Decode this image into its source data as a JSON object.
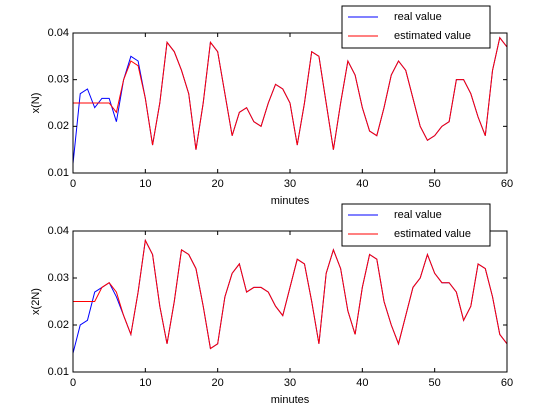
{
  "chart_data": [
    {
      "type": "line",
      "xlabel": "minutes",
      "ylabel": "x(N)",
      "legend": "upper right",
      "xlim": [
        0,
        60
      ],
      "xticks": [
        0,
        10,
        20,
        30,
        40,
        50,
        60
      ],
      "ylim": [
        0.01,
        0.04
      ],
      "yticks": [
        0.01,
        0.02,
        0.03,
        0.04
      ],
      "x": [
        0,
        1,
        2,
        3,
        4,
        5,
        6,
        7,
        8,
        9,
        10,
        11,
        12,
        13,
        14,
        15,
        16,
        17,
        18,
        19,
        20,
        21,
        22,
        23,
        24,
        25,
        26,
        27,
        28,
        29,
        30,
        31,
        32,
        33,
        34,
        35,
        36,
        37,
        38,
        39,
        40,
        41,
        42,
        43,
        44,
        45,
        46,
        47,
        48,
        49,
        50,
        51,
        52,
        53,
        54,
        55,
        56,
        57,
        58,
        59,
        60
      ],
      "series": [
        {
          "name": "real value",
          "color": "#0000ff",
          "values": [
            0.012,
            0.027,
            0.028,
            0.024,
            0.026,
            0.026,
            0.021,
            0.03,
            0.035,
            0.034,
            0.026,
            0.016,
            0.025,
            0.038,
            0.036,
            0.032,
            0.027,
            0.015,
            0.025,
            0.038,
            0.036,
            0.027,
            0.018,
            0.023,
            0.024,
            0.021,
            0.02,
            0.025,
            0.029,
            0.028,
            0.025,
            0.016,
            0.025,
            0.036,
            0.035,
            0.025,
            0.015,
            0.025,
            0.034,
            0.031,
            0.024,
            0.019,
            0.018,
            0.024,
            0.031,
            0.034,
            0.032,
            0.026,
            0.02,
            0.017,
            0.018,
            0.02,
            0.021,
            0.03,
            0.03,
            0.027,
            0.022,
            0.018,
            0.032,
            0.039,
            0.037
          ]
        },
        {
          "name": "estimated value",
          "color": "#ff0000",
          "values": [
            0.025,
            0.025,
            0.025,
            0.025,
            0.025,
            0.025,
            0.023,
            0.03,
            0.034,
            0.033,
            0.026,
            0.016,
            0.025,
            0.038,
            0.036,
            0.032,
            0.027,
            0.015,
            0.025,
            0.038,
            0.036,
            0.027,
            0.018,
            0.023,
            0.024,
            0.021,
            0.02,
            0.025,
            0.029,
            0.028,
            0.025,
            0.016,
            0.025,
            0.036,
            0.035,
            0.025,
            0.015,
            0.025,
            0.034,
            0.031,
            0.024,
            0.019,
            0.018,
            0.024,
            0.031,
            0.034,
            0.032,
            0.026,
            0.02,
            0.017,
            0.018,
            0.02,
            0.021,
            0.03,
            0.03,
            0.027,
            0.022,
            0.018,
            0.032,
            0.039,
            0.037
          ]
        }
      ]
    },
    {
      "type": "line",
      "xlabel": "minutes",
      "ylabel": "x(2N)",
      "legend": "upper right",
      "xlim": [
        0,
        60
      ],
      "xticks": [
        0,
        10,
        20,
        30,
        40,
        50,
        60
      ],
      "ylim": [
        0.01,
        0.04
      ],
      "yticks": [
        0.01,
        0.02,
        0.03,
        0.04
      ],
      "x": [
        0,
        1,
        2,
        3,
        4,
        5,
        6,
        7,
        8,
        9,
        10,
        11,
        12,
        13,
        14,
        15,
        16,
        17,
        18,
        19,
        20,
        21,
        22,
        23,
        24,
        25,
        26,
        27,
        28,
        29,
        30,
        31,
        32,
        33,
        34,
        35,
        36,
        37,
        38,
        39,
        40,
        41,
        42,
        43,
        44,
        45,
        46,
        47,
        48,
        49,
        50,
        51,
        52,
        53,
        54,
        55,
        56,
        57,
        58,
        59,
        60
      ],
      "series": [
        {
          "name": "real value",
          "color": "#0000ff",
          "values": [
            0.014,
            0.02,
            0.021,
            0.027,
            0.028,
            0.029,
            0.026,
            0.022,
            0.018,
            0.027,
            0.038,
            0.035,
            0.024,
            0.016,
            0.025,
            0.036,
            0.035,
            0.032,
            0.024,
            0.015,
            0.016,
            0.026,
            0.031,
            0.033,
            0.027,
            0.028,
            0.028,
            0.027,
            0.024,
            0.022,
            0.028,
            0.034,
            0.033,
            0.025,
            0.016,
            0.031,
            0.036,
            0.032,
            0.023,
            0.018,
            0.028,
            0.035,
            0.034,
            0.025,
            0.02,
            0.016,
            0.022,
            0.028,
            0.03,
            0.035,
            0.031,
            0.029,
            0.029,
            0.027,
            0.021,
            0.024,
            0.033,
            0.032,
            0.026,
            0.018,
            0.016
          ]
        },
        {
          "name": "estimated value",
          "color": "#ff0000",
          "values": [
            0.025,
            0.025,
            0.025,
            0.025,
            0.028,
            0.029,
            0.027,
            0.022,
            0.018,
            0.027,
            0.038,
            0.035,
            0.024,
            0.016,
            0.025,
            0.036,
            0.035,
            0.032,
            0.024,
            0.015,
            0.016,
            0.026,
            0.031,
            0.033,
            0.027,
            0.028,
            0.028,
            0.027,
            0.024,
            0.022,
            0.028,
            0.034,
            0.033,
            0.025,
            0.016,
            0.031,
            0.036,
            0.032,
            0.023,
            0.018,
            0.028,
            0.035,
            0.034,
            0.025,
            0.02,
            0.016,
            0.022,
            0.028,
            0.03,
            0.035,
            0.031,
            0.029,
            0.029,
            0.027,
            0.021,
            0.024,
            0.033,
            0.032,
            0.026,
            0.018,
            0.016
          ]
        }
      ]
    }
  ]
}
